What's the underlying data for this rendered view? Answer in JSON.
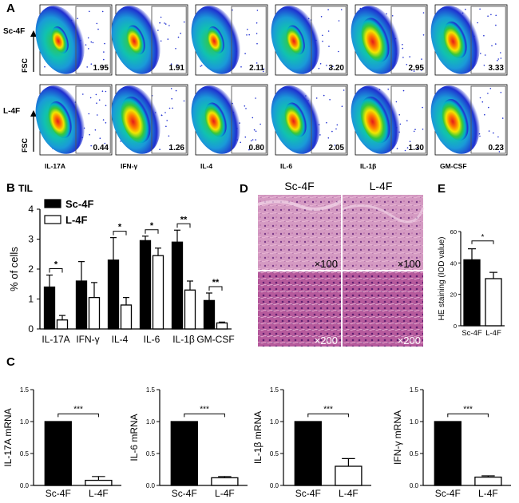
{
  "panels": {
    "a": "A",
    "b": "B",
    "c": "C",
    "d": "D",
    "e": "E"
  },
  "flow": {
    "rows": [
      "Sc-4F",
      "L-4F"
    ],
    "axis_label": "FSC",
    "markers": [
      "IL-17A",
      "IFN-γ",
      "IL-4",
      "IL-6",
      "IL-1β",
      "GM-CSF"
    ],
    "values": [
      [
        "1.95",
        "1.91",
        "2.11",
        "3.20",
        "2.95",
        "3.33"
      ],
      [
        "0.44",
        "1.26",
        "0.80",
        "2.05",
        "1.30",
        "0.23"
      ]
    ]
  },
  "histology": {
    "col_titles": [
      "Sc-4F",
      "L-4F"
    ],
    "magnifications": [
      "×100",
      "×100",
      "×200",
      "×200"
    ]
  },
  "colors": {
    "black_bar": "#000000",
    "white_bar": "#ffffff",
    "flow_hot": "#e31a1c",
    "flow_cold": "#1f2fd0",
    "he_pink": "#d98fb8",
    "he_purple": "#8a3f86"
  },
  "chart_data": [
    {
      "id": "B",
      "type": "bar",
      "title": "TIL",
      "ylabel": "% of cells",
      "xlabel": "",
      "ylim": [
        0,
        4
      ],
      "yticks": [
        "0",
        "1",
        "2",
        "3",
        "4"
      ],
      "categories": [
        "IL-17A",
        "IFN-γ",
        "IL-4",
        "IL-6",
        "IL-1β",
        "GM-CSF"
      ],
      "series": [
        {
          "name": "Sc-4F",
          "values": [
            1.4,
            1.6,
            2.3,
            2.95,
            2.9,
            0.95
          ],
          "errors": [
            0.4,
            0.65,
            0.75,
            0.15,
            0.4,
            0.25
          ]
        },
        {
          "name": "L-4F",
          "values": [
            0.3,
            1.05,
            0.8,
            2.45,
            1.3,
            0.2
          ],
          "errors": [
            0.15,
            0.5,
            0.25,
            0.25,
            0.3,
            0.03
          ]
        }
      ],
      "significance": [
        {
          "category": 0,
          "label": "*"
        },
        {
          "category": 2,
          "label": "*"
        },
        {
          "category": 3,
          "label": "*"
        },
        {
          "category": 4,
          "label": "**"
        },
        {
          "category": 5,
          "label": "**"
        }
      ]
    },
    {
      "id": "E",
      "type": "bar",
      "ylabel": "HE staining (IOD value)",
      "ylim": [
        0,
        60
      ],
      "yticks": [
        "0",
        "20",
        "40",
        "60"
      ],
      "categories": [
        "Sc-4F",
        "L-4F"
      ],
      "values": [
        42,
        30
      ],
      "errors": [
        7,
        4
      ],
      "significance": "*"
    },
    {
      "id": "C1",
      "type": "bar",
      "ylabel": "IL-17A mRNA",
      "ylim": [
        0,
        1.5
      ],
      "yticks": [
        "0.0",
        "0.5",
        "1.0",
        "1.5"
      ],
      "categories": [
        "Sc-4F",
        "L-4F"
      ],
      "values": [
        1.0,
        0.08
      ],
      "errors": [
        0,
        0.06
      ],
      "significance": "***"
    },
    {
      "id": "C2",
      "type": "bar",
      "ylabel": "IL-6 mRNA",
      "ylim": [
        0,
        1.5
      ],
      "yticks": [
        "0.0",
        "0.5",
        "1.0",
        "1.5"
      ],
      "categories": [
        "Sc-4F",
        "L-4F"
      ],
      "values": [
        1.0,
        0.12
      ],
      "errors": [
        0,
        0.02
      ],
      "significance": "***"
    },
    {
      "id": "C3",
      "type": "bar",
      "ylabel": "IL-1β mRNA",
      "ylim": [
        0,
        1.5
      ],
      "yticks": [
        "0.0",
        "0.5",
        "1.0",
        "1.5"
      ],
      "categories": [
        "Sc-4F",
        "L-4F"
      ],
      "values": [
        1.0,
        0.3
      ],
      "errors": [
        0,
        0.12
      ],
      "significance": "***"
    },
    {
      "id": "C4",
      "type": "bar",
      "ylabel": "IFN-γ mRNA",
      "ylim": [
        0,
        1.5
      ],
      "yticks": [
        "0.0",
        "0.5",
        "1.0",
        "1.5"
      ],
      "categories": [
        "Sc-4F",
        "L-4F"
      ],
      "values": [
        1.0,
        0.13
      ],
      "errors": [
        0,
        0.02
      ],
      "significance": "***"
    }
  ]
}
